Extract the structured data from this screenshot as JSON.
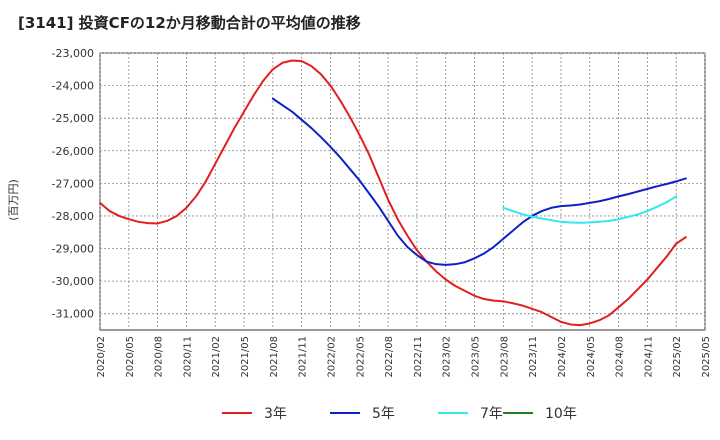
{
  "chart_data": {
    "type": "line",
    "title": "[3141]  投資CFの12か月移動合計の平均値の推移",
    "ylabel": "(百万円)",
    "xlabel": "",
    "ylim": [
      -31500,
      -23000
    ],
    "y_ticks": [
      -23000,
      -24000,
      -25000,
      -26000,
      -27000,
      -28000,
      -29000,
      -30000,
      -31000
    ],
    "y_tick_labels": [
      "-23,000",
      "-24,000",
      "-25,000",
      "-26,000",
      "-27,000",
      "-28,000",
      "-29,000",
      "-30,000",
      "-31,000"
    ],
    "x_tick_labels": [
      "2020/02",
      "2020/05",
      "2020/08",
      "2020/11",
      "2021/02",
      "2021/05",
      "2021/08",
      "2021/11",
      "2022/02",
      "2022/05",
      "2022/08",
      "2022/11",
      "2023/02",
      "2023/05",
      "2023/08",
      "2023/11",
      "2024/02",
      "2024/05",
      "2024/08",
      "2024/11",
      "2025/02",
      "2025/05"
    ],
    "grid": true,
    "legend_position": "bottom",
    "series": [
      {
        "name": "3年",
        "color": "#e02020",
        "points": [
          [
            "2020/02",
            -27600
          ],
          [
            "2020/03",
            -27850
          ],
          [
            "2020/04",
            -28000
          ],
          [
            "2020/05",
            -28100
          ],
          [
            "2020/06",
            -28180
          ],
          [
            "2020/07",
            -28220
          ],
          [
            "2020/08",
            -28230
          ],
          [
            "2020/09",
            -28150
          ],
          [
            "2020/10",
            -28000
          ],
          [
            "2020/11",
            -27750
          ],
          [
            "2020/12",
            -27400
          ],
          [
            "2021/01",
            -26950
          ],
          [
            "2021/02",
            -26400
          ],
          [
            "2021/03",
            -25850
          ],
          [
            "2021/04",
            -25300
          ],
          [
            "2021/05",
            -24800
          ],
          [
            "2021/06",
            -24300
          ],
          [
            "2021/07",
            -23850
          ],
          [
            "2021/08",
            -23500
          ],
          [
            "2021/09",
            -23300
          ],
          [
            "2021/10",
            -23230
          ],
          [
            "2021/11",
            -23250
          ],
          [
            "2021/12",
            -23400
          ],
          [
            "2022/01",
            -23650
          ],
          [
            "2022/02",
            -24000
          ],
          [
            "2022/03",
            -24450
          ],
          [
            "2022/04",
            -24950
          ],
          [
            "2022/05",
            -25500
          ],
          [
            "2022/06",
            -26100
          ],
          [
            "2022/07",
            -26800
          ],
          [
            "2022/08",
            -27500
          ],
          [
            "2022/09",
            -28100
          ],
          [
            "2022/10",
            -28600
          ],
          [
            "2022/11",
            -29050
          ],
          [
            "2022/12",
            -29400
          ],
          [
            "2023/01",
            -29700
          ],
          [
            "2023/02",
            -29950
          ],
          [
            "2023/03",
            -30150
          ],
          [
            "2023/04",
            -30300
          ],
          [
            "2023/05",
            -30450
          ],
          [
            "2023/06",
            -30550
          ],
          [
            "2023/07",
            -30600
          ],
          [
            "2023/08",
            -30620
          ],
          [
            "2023/09",
            -30680
          ],
          [
            "2023/10",
            -30750
          ],
          [
            "2023/11",
            -30850
          ],
          [
            "2023/12",
            -30950
          ],
          [
            "2024/01",
            -31100
          ],
          [
            "2024/02",
            -31250
          ],
          [
            "2024/03",
            -31330
          ],
          [
            "2024/04",
            -31350
          ],
          [
            "2024/05",
            -31300
          ],
          [
            "2024/06",
            -31200
          ],
          [
            "2024/07",
            -31050
          ],
          [
            "2024/08",
            -30800
          ],
          [
            "2024/09",
            -30550
          ],
          [
            "2024/10",
            -30250
          ],
          [
            "2024/11",
            -29950
          ],
          [
            "2024/12",
            -29600
          ],
          [
            "2025/01",
            -29250
          ],
          [
            "2025/02",
            -28850
          ],
          [
            "2025/03",
            -28650
          ]
        ]
      },
      {
        "name": "5年",
        "color": "#1020c8",
        "points": [
          [
            "2021/08",
            -24400
          ],
          [
            "2021/09",
            -24600
          ],
          [
            "2021/10",
            -24800
          ],
          [
            "2021/11",
            -25050
          ],
          [
            "2021/12",
            -25300
          ],
          [
            "2022/01",
            -25580
          ],
          [
            "2022/02",
            -25880
          ],
          [
            "2022/03",
            -26200
          ],
          [
            "2022/04",
            -26550
          ],
          [
            "2022/05",
            -26900
          ],
          [
            "2022/06",
            -27300
          ],
          [
            "2022/07",
            -27700
          ],
          [
            "2022/08",
            -28150
          ],
          [
            "2022/09",
            -28600
          ],
          [
            "2022/10",
            -28950
          ],
          [
            "2022/11",
            -29200
          ],
          [
            "2022/12",
            -29400
          ],
          [
            "2023/01",
            -29480
          ],
          [
            "2023/02",
            -29500
          ],
          [
            "2023/03",
            -29480
          ],
          [
            "2023/04",
            -29420
          ],
          [
            "2023/05",
            -29300
          ],
          [
            "2023/06",
            -29150
          ],
          [
            "2023/07",
            -28950
          ],
          [
            "2023/08",
            -28700
          ],
          [
            "2023/09",
            -28450
          ],
          [
            "2023/10",
            -28200
          ],
          [
            "2023/11",
            -28000
          ],
          [
            "2023/12",
            -27850
          ],
          [
            "2024/01",
            -27750
          ],
          [
            "2024/02",
            -27700
          ],
          [
            "2024/03",
            -27680
          ],
          [
            "2024/04",
            -27650
          ],
          [
            "2024/05",
            -27600
          ],
          [
            "2024/06",
            -27550
          ],
          [
            "2024/07",
            -27480
          ],
          [
            "2024/08",
            -27400
          ],
          [
            "2024/09",
            -27330
          ],
          [
            "2024/10",
            -27250
          ],
          [
            "2024/11",
            -27170
          ],
          [
            "2024/12",
            -27090
          ],
          [
            "2025/01",
            -27020
          ],
          [
            "2025/02",
            -26940
          ],
          [
            "2025/03",
            -26850
          ]
        ]
      },
      {
        "name": "7年",
        "color": "#30e8f0",
        "points": [
          [
            "2023/08",
            -27750
          ],
          [
            "2023/09",
            -27850
          ],
          [
            "2023/10",
            -27950
          ],
          [
            "2023/11",
            -28020
          ],
          [
            "2023/12",
            -28080
          ],
          [
            "2024/01",
            -28130
          ],
          [
            "2024/02",
            -28180
          ],
          [
            "2024/03",
            -28200
          ],
          [
            "2024/04",
            -28210
          ],
          [
            "2024/05",
            -28200
          ],
          [
            "2024/06",
            -28180
          ],
          [
            "2024/07",
            -28150
          ],
          [
            "2024/08",
            -28100
          ],
          [
            "2024/09",
            -28030
          ],
          [
            "2024/10",
            -27950
          ],
          [
            "2024/11",
            -27850
          ],
          [
            "2024/12",
            -27720
          ],
          [
            "2025/01",
            -27580
          ],
          [
            "2025/02",
            -27400
          ]
        ]
      },
      {
        "name": "10年",
        "color": "#208020",
        "points": []
      }
    ]
  }
}
